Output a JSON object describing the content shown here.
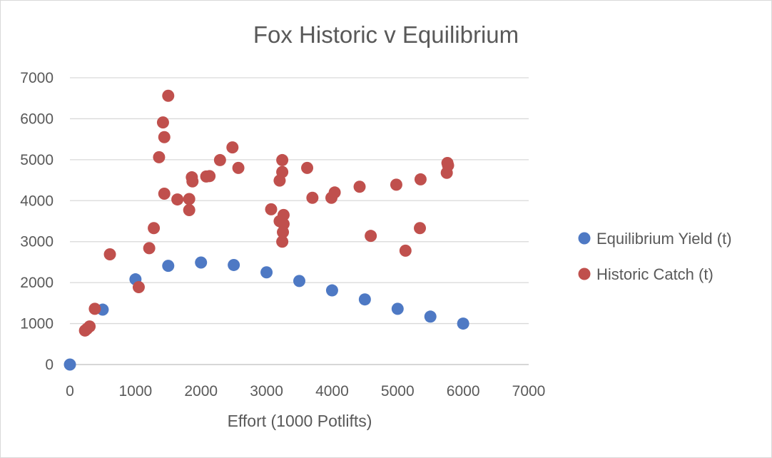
{
  "chart_data": {
    "type": "scatter",
    "title": "Fox Historic v Equilibrium",
    "xlabel": "Effort (1000 Potlifts)",
    "ylabel": "",
    "xlim": [
      0,
      7000
    ],
    "ylim": [
      0,
      7000
    ],
    "xticks": [
      0,
      1000,
      2000,
      3000,
      4000,
      5000,
      6000,
      7000
    ],
    "yticks": [
      0,
      1000,
      2000,
      3000,
      4000,
      5000,
      6000,
      7000
    ],
    "grid": "horizontal",
    "legend_position": "right",
    "series": [
      {
        "name": "Equilibrium Yield (t)",
        "color": "#4e79c4",
        "points": [
          [
            0,
            0
          ],
          [
            500,
            1340
          ],
          [
            1000,
            2080
          ],
          [
            1500,
            2410
          ],
          [
            2000,
            2490
          ],
          [
            2500,
            2430
          ],
          [
            3000,
            2250
          ],
          [
            3500,
            2040
          ],
          [
            4000,
            1810
          ],
          [
            4500,
            1590
          ],
          [
            5000,
            1360
          ],
          [
            5500,
            1170
          ],
          [
            6000,
            1000
          ]
        ]
      },
      {
        "name": "Historic Catch (t)",
        "color": "#c0504d",
        "points": [
          [
            230,
            830
          ],
          [
            260,
            870
          ],
          [
            300,
            930
          ],
          [
            380,
            1360
          ],
          [
            610,
            2690
          ],
          [
            1050,
            1890
          ],
          [
            1210,
            2840
          ],
          [
            1280,
            3330
          ],
          [
            1360,
            5060
          ],
          [
            1420,
            5910
          ],
          [
            1440,
            5550
          ],
          [
            1440,
            4170
          ],
          [
            1500,
            6560
          ],
          [
            1640,
            4030
          ],
          [
            1820,
            3770
          ],
          [
            1820,
            4040
          ],
          [
            1860,
            4570
          ],
          [
            1870,
            4470
          ],
          [
            2080,
            4590
          ],
          [
            2130,
            4600
          ],
          [
            2290,
            4990
          ],
          [
            2480,
            5300
          ],
          [
            2570,
            4800
          ],
          [
            3070,
            3790
          ],
          [
            3200,
            3500
          ],
          [
            3200,
            4490
          ],
          [
            3240,
            4700
          ],
          [
            3240,
            4990
          ],
          [
            3240,
            3000
          ],
          [
            3250,
            3230
          ],
          [
            3260,
            3650
          ],
          [
            3260,
            3430
          ],
          [
            3620,
            4800
          ],
          [
            3700,
            4070
          ],
          [
            3990,
            4070
          ],
          [
            4040,
            4200
          ],
          [
            4420,
            4340
          ],
          [
            4590,
            3140
          ],
          [
            4980,
            4390
          ],
          [
            5120,
            2780
          ],
          [
            5340,
            3330
          ],
          [
            5350,
            4520
          ],
          [
            5750,
            4680
          ],
          [
            5760,
            4920
          ],
          [
            5770,
            4860
          ]
        ]
      }
    ]
  }
}
